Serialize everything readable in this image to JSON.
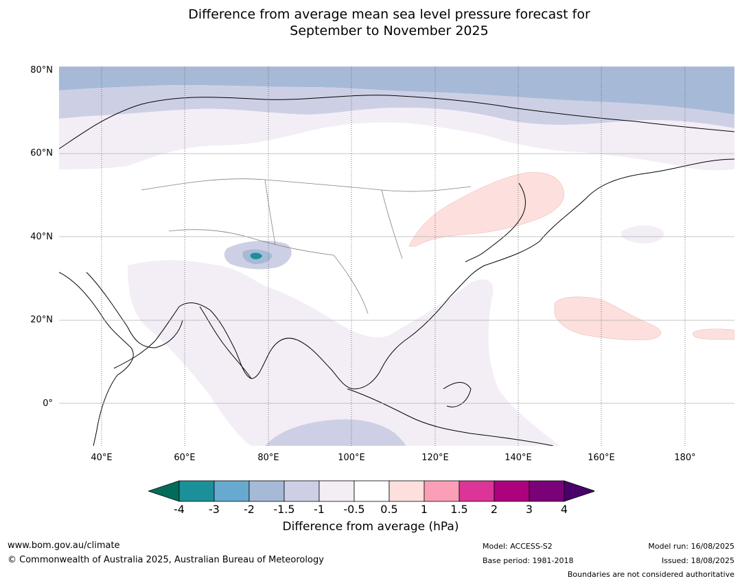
{
  "title": {
    "line1": "Difference from average mean sea level pressure forecast for",
    "line2": "September to November 2025"
  },
  "map": {
    "lat_labels": [
      "80°N",
      "60°N",
      "40°N",
      "20°N",
      "0°"
    ],
    "lon_labels": [
      "40°E",
      "60°E",
      "80°E",
      "100°E",
      "120°E",
      "140°E",
      "160°E",
      "180°"
    ],
    "colors": {
      "ocean_light_blue": "#a6bad8",
      "lavender": "#cdd0e5",
      "pale_lilac": "#f3eef6",
      "pale_pink": "#fde0dd",
      "teal": "#1c9099",
      "blue": "#67a9cf",
      "coast": "#000000",
      "border": "#808080"
    }
  },
  "colorbar": {
    "tick_labels": [
      "-4",
      "-3",
      "-2",
      "-1.5",
      "-1",
      "-0.5",
      "0.5",
      "1",
      "1.5",
      "2",
      "3",
      "4"
    ],
    "colors": [
      "#016c59",
      "#1c9099",
      "#67a9cf",
      "#a6bad8",
      "#cdd0e5",
      "#f3eef6",
      "#ffffff",
      "#fde0dd",
      "#fa9fb5",
      "#dd3497",
      "#ae017e",
      "#7a0177",
      "#49006a"
    ],
    "label": "Difference from average (hPa)"
  },
  "footer": {
    "website": "www.bom.gov.au/climate",
    "copyright": "© Commonwealth of Australia 2025, Australian Bureau of Meteorology",
    "model": "Model: ACCESS-S2",
    "base_period": "Base period: 1981-2018",
    "model_run": "Model run: 16/08/2025",
    "issued": "Issued: 18/08/2025",
    "disclaimer": "Boundaries are not considered authoritative"
  }
}
